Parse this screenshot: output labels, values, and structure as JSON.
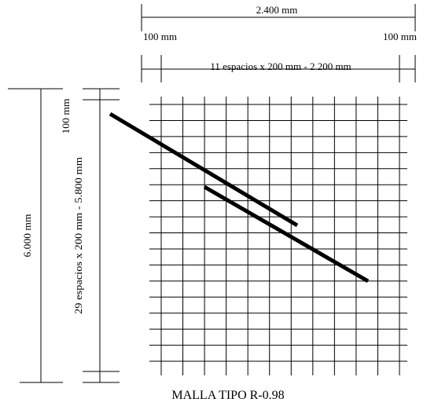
{
  "dimensions": {
    "total_width": "2.400 mm",
    "left_margin": "100 mm",
    "right_margin": "100 mm",
    "width_spacing": "11 espacios x 200 mm - 2.200 mm",
    "total_length": "6.000 mm",
    "top_margin": "100 mm",
    "length_spacing": "29 espacios x 200 mm - 5.800 mm"
  },
  "title": "MALLA TIPO R-0.98"
}
